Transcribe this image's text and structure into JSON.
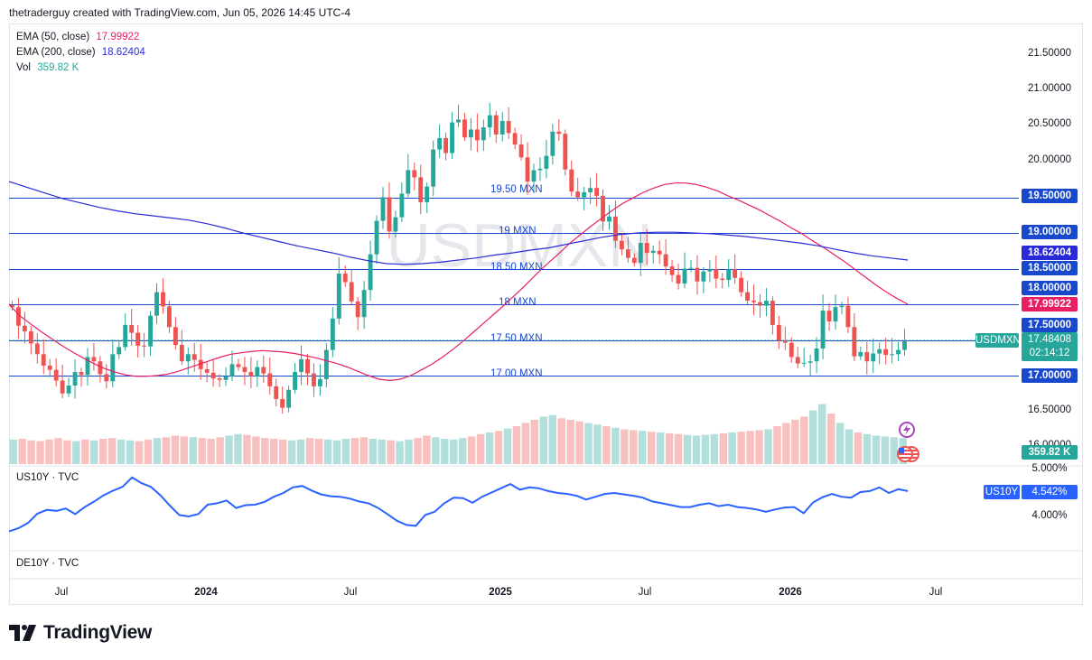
{
  "header": {
    "text": "thetraderguy created with TradingView.com, Jun 05, 2026 14:45 UTC-4"
  },
  "watermark": "USDMXN",
  "legend": {
    "ema50": {
      "label": "EMA (50, close)",
      "value": "17.99922",
      "color": "#e91e63"
    },
    "ema200": {
      "label": "EMA (200, close)",
      "value": "18.62404",
      "color": "#2929d9"
    },
    "vol": {
      "label": "Vol",
      "value": "359.82 K",
      "color": "#26a69a"
    }
  },
  "colors": {
    "up": "#26a69a",
    "down": "#ef5350",
    "up_vol": "#b2dfdb",
    "down_vol": "#f9c0c0",
    "level_line": "#1848cc",
    "us10y": "#2962ff"
  },
  "price_axis": {
    "ticks": [
      "21.50000",
      "21.00000",
      "20.50000",
      "20.00000",
      "16.50000",
      "16.00000"
    ],
    "level_tags": [
      "19.50000",
      "19.00000",
      "18.50000",
      "18.00000",
      "17.50000",
      "17.00000"
    ],
    "ema200_tag": "18.62404",
    "ema50_tag": "17.99922",
    "symbol_tag": "USDMXN",
    "last_price": "17.48408",
    "countdown": "02:14:12",
    "vol_tag": "359.82 K"
  },
  "levels": [
    {
      "value": 19.5,
      "label": "19.50 MXN"
    },
    {
      "value": 19.0,
      "label": "19 MXN"
    },
    {
      "value": 18.5,
      "label": "18.50 MXN"
    },
    {
      "value": 18.0,
      "label": "18 MXN"
    },
    {
      "value": 17.5,
      "label": "17.50 MXN"
    },
    {
      "value": 17.0,
      "label": "17.00 MXN"
    }
  ],
  "us10y_pane": {
    "label": "US10Y · TVC",
    "ticks": [
      "5.000%",
      "4.000%"
    ],
    "tag_symbol": "US10Y",
    "tag_value": "4.542%"
  },
  "de10y_pane": {
    "label": "DE10Y · TVC"
  },
  "time_axis": [
    "Jul",
    "2024",
    "Jul",
    "2025",
    "Jul",
    "2026",
    "Jul"
  ],
  "chart_data": {
    "type": "candlestick",
    "symbol": "USDMXN",
    "period": "Jun 2023 – Jun 2026 (weekly)",
    "ylim": [
      16.0,
      21.6
    ],
    "closes": [
      17.96,
      17.7,
      17.62,
      17.45,
      17.3,
      17.14,
      17.08,
      16.93,
      16.75,
      16.86,
      17.05,
      17.01,
      17.26,
      17.2,
      17.02,
      16.92,
      17.3,
      17.4,
      17.71,
      17.6,
      17.42,
      17.41,
      17.84,
      18.17,
      17.97,
      17.68,
      17.43,
      17.2,
      17.3,
      17.22,
      17.09,
      17.04,
      16.96,
      16.94,
      16.99,
      17.16,
      17.12,
      17.05,
      16.99,
      17.12,
      17.03,
      16.85,
      16.67,
      16.55,
      16.8,
      17.05,
      17.23,
      17.03,
      16.85,
      16.95,
      17.36,
      17.8,
      18.43,
      18.31,
      18.04,
      17.82,
      18.2,
      18.7,
      19.17,
      19.5,
      19.02,
      19.22,
      19.55,
      19.88,
      19.78,
      19.43,
      19.65,
      20.17,
      20.33,
      20.12,
      20.55,
      20.59,
      20.34,
      20.45,
      20.3,
      20.48,
      20.65,
      20.38,
      20.57,
      20.4,
      20.24,
      20.06,
      19.72,
      19.88,
      19.9,
      20.08,
      20.42,
      20.39,
      19.89,
      19.58,
      19.5,
      19.57,
      19.63,
      19.52,
      19.16,
      19.23,
      18.89,
      18.77,
      18.65,
      18.58,
      18.86,
      18.72,
      18.75,
      18.7,
      18.53,
      18.41,
      18.29,
      18.5,
      18.51,
      18.32,
      18.46,
      18.49,
      18.36,
      18.34,
      18.49,
      18.37,
      18.17,
      18.05,
      18.03,
      17.98,
      18.05,
      17.71,
      17.49,
      17.46,
      17.26,
      17.17,
      17.18,
      17.2,
      17.38,
      17.91,
      17.76,
      17.96,
      17.98,
      17.68,
      17.27,
      17.33,
      17.2,
      17.31,
      17.37,
      17.29,
      17.3,
      17.36,
      17.48
    ],
    "ema50": [
      18.0,
      17.84,
      17.73,
      17.62,
      17.52,
      17.42,
      17.33,
      17.25,
      17.17,
      17.1,
      17.05,
      17.01,
      16.99,
      16.99,
      17.0,
      17.02,
      17.06,
      17.11,
      17.16,
      17.21,
      17.26,
      17.3,
      17.32,
      17.34,
      17.35,
      17.34,
      17.33,
      17.31,
      17.28,
      17.25,
      17.21,
      17.17,
      17.12,
      17.06,
      17.0,
      16.95,
      16.93,
      16.95,
      17.0,
      17.08,
      17.16,
      17.26,
      17.37,
      17.49,
      17.62,
      17.75,
      17.88,
      18.01,
      18.15,
      18.29,
      18.44,
      18.58,
      18.71,
      18.85,
      18.97,
      19.09,
      19.2,
      19.31,
      19.41,
      19.49,
      19.57,
      19.63,
      19.68,
      19.7,
      19.7,
      19.68,
      19.64,
      19.59,
      19.52,
      19.46,
      19.39,
      19.32,
      19.24,
      19.16,
      19.07,
      18.99,
      18.89,
      18.8,
      18.7,
      18.6,
      18.49,
      18.38,
      18.27,
      18.17,
      18.08,
      18.0
    ],
    "ema200": [
      19.72,
      19.64,
      19.56,
      19.48,
      19.42,
      19.36,
      19.31,
      19.27,
      19.24,
      19.21,
      19.18,
      19.13,
      19.07,
      19.0,
      18.94,
      18.88,
      18.82,
      18.77,
      18.72,
      18.66,
      18.61,
      18.57,
      18.56,
      18.57,
      18.59,
      18.62,
      18.65,
      18.69,
      18.72,
      18.76,
      18.79,
      18.84,
      18.89,
      18.94,
      18.98,
      19.0,
      19.01,
      19.01,
      19.0,
      18.99,
      18.97,
      18.95,
      18.92,
      18.89,
      18.86,
      18.82,
      18.77,
      18.72,
      18.68,
      18.65,
      18.62
    ],
    "volume_k": [
      310,
      320,
      300,
      290,
      310,
      330,
      300,
      290,
      310,
      300,
      320,
      330,
      310,
      300,
      290,
      310,
      330,
      340,
      360,
      350,
      340,
      330,
      320,
      340,
      360,
      380,
      370,
      350,
      330,
      320,
      310,
      300,
      310,
      330,
      320,
      310,
      300,
      320,
      330,
      340,
      320,
      310,
      300,
      290,
      310,
      330,
      360,
      340,
      320,
      310,
      330,
      350,
      380,
      400,
      420,
      450,
      480,
      520,
      560,
      600,
      620,
      580,
      560,
      540,
      520,
      500,
      480,
      460,
      440,
      430,
      420,
      410,
      400,
      390,
      380,
      370,
      360,
      370,
      380,
      390,
      400,
      410,
      420,
      430,
      440,
      480,
      520,
      560,
      600,
      680,
      760,
      640,
      520,
      440,
      400,
      380,
      360,
      350,
      340,
      330
    ],
    "us10y_pct": [
      3.68,
      3.75,
      3.86,
      4.06,
      4.14,
      4.12,
      4.17,
      4.05,
      4.2,
      4.32,
      4.45,
      4.55,
      4.63,
      4.83,
      4.71,
      4.63,
      4.45,
      4.23,
      4.03,
      4.0,
      4.05,
      4.25,
      4.28,
      4.34,
      4.18,
      4.24,
      4.25,
      4.31,
      4.42,
      4.5,
      4.62,
      4.65,
      4.55,
      4.47,
      4.43,
      4.42,
      4.38,
      4.32,
      4.28,
      4.18,
      4.05,
      3.91,
      3.82,
      3.8,
      4.03,
      4.1,
      4.28,
      4.4,
      4.39,
      4.29,
      4.42,
      4.51,
      4.6,
      4.69,
      4.57,
      4.62,
      4.6,
      4.54,
      4.5,
      4.48,
      4.44,
      4.36,
      4.42,
      4.48,
      4.5,
      4.47,
      4.44,
      4.4,
      4.32,
      4.28,
      4.24,
      4.2,
      4.2,
      4.25,
      4.28,
      4.22,
      4.25,
      4.2,
      4.18,
      4.15,
      4.1,
      4.15,
      4.19,
      4.2,
      4.07,
      4.3,
      4.41,
      4.48,
      4.42,
      4.4,
      4.52,
      4.54,
      4.62,
      4.5,
      4.58,
      4.54
    ]
  }
}
